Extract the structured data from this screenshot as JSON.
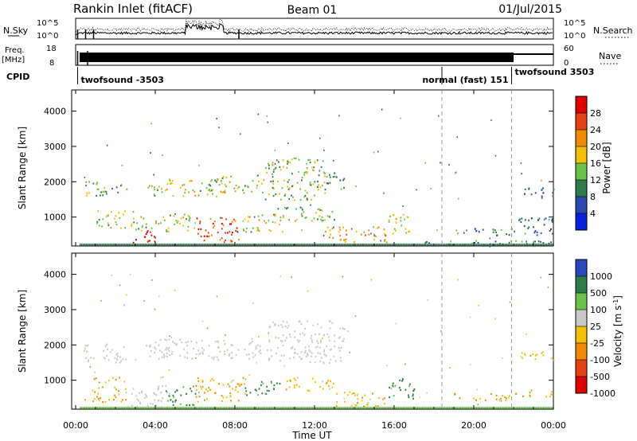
{
  "header": {
    "station": "Rankin Inlet (fitACF)",
    "beam": "Beam 01",
    "date": "01/Jul/2015"
  },
  "top_panels": {
    "nsky_label": "N.Sky",
    "nsearch_label": "N.Search",
    "freq_label_1": "Freq.",
    "freq_label_2": "[MHz]",
    "nave_label": "Nave",
    "cpid_label": "CPID",
    "left_ticks_counts": [
      "10^5",
      "10^0"
    ],
    "right_ticks_counts": [
      "10^5",
      "10^0"
    ],
    "left_ticks_freq": [
      "18",
      "8"
    ],
    "right_ticks_nave": [
      "60",
      "0"
    ]
  },
  "cpid_segments": [
    {
      "label": "twofsound -3503",
      "start_hour": 0.1
    },
    {
      "label": "normal (fast) 151",
      "start_hour": 18.4
    },
    {
      "label": "twofsound 3503",
      "start_hour": 21.9
    }
  ],
  "x_axis": {
    "label": "Time UT",
    "ticks": [
      "00:00",
      "04:00",
      "08:00",
      "12:00",
      "16:00",
      "20:00",
      "00:00"
    ],
    "range_hours": [
      0,
      24
    ]
  },
  "chart_data": [
    {
      "type": "heatmap",
      "ylabel": "Slant Range [km]",
      "yticks": [
        "1000",
        "2000",
        "3000",
        "4000"
      ],
      "ylim": [
        180,
        4600
      ],
      "colorbar_label": "Power [dB]",
      "colorbar_ticks": [
        "4",
        "8",
        "12",
        "16",
        "20",
        "24",
        "28"
      ],
      "colors": [
        "#0a1ee0",
        "#2a48b0",
        "#2f7a4a",
        "#6cc248",
        "#f2c000",
        "#f28a00",
        "#e84010",
        "#e00000"
      ],
      "regions": [
        {
          "t0": 0.4,
          "t1": 1.6,
          "r0": 1500,
          "r1": 2050,
          "value": 14
        },
        {
          "t0": 1.8,
          "t1": 2.6,
          "r0": 1700,
          "r1": 1950,
          "value": 14
        },
        {
          "t0": 3.6,
          "t1": 7.5,
          "r0": 1600,
          "r1": 2100,
          "value": 16
        },
        {
          "t0": 7.0,
          "t1": 9.5,
          "r0": 1700,
          "r1": 2200,
          "value": 16
        },
        {
          "t0": 9.5,
          "t1": 12.5,
          "r0": 1500,
          "r1": 2700,
          "value": 14
        },
        {
          "t0": 12.0,
          "t1": 13.5,
          "r0": 1800,
          "r1": 2300,
          "value": 12
        },
        {
          "t0": 1.0,
          "t1": 3.0,
          "r0": 700,
          "r1": 1200,
          "value": 16
        },
        {
          "t0": 2.8,
          "t1": 4.2,
          "r0": 250,
          "r1": 650,
          "value": 28
        },
        {
          "t0": 3.0,
          "t1": 6.0,
          "r0": 600,
          "r1": 1100,
          "value": 16
        },
        {
          "t0": 6.0,
          "t1": 8.4,
          "r0": 300,
          "r1": 1000,
          "value": 26
        },
        {
          "t0": 8.4,
          "t1": 10.5,
          "r0": 600,
          "r1": 1100,
          "value": 16
        },
        {
          "t0": 10.0,
          "t1": 13.0,
          "r0": 900,
          "r1": 1300,
          "value": 14
        },
        {
          "t0": 12.5,
          "t1": 15.6,
          "r0": 250,
          "r1": 750,
          "value": 20
        },
        {
          "t0": 15.6,
          "t1": 16.8,
          "r0": 500,
          "r1": 1100,
          "value": 18
        },
        {
          "t0": 16.8,
          "t1": 24.0,
          "r0": 180,
          "r1": 350,
          "value": 10
        },
        {
          "t0": 19.0,
          "t1": 22.0,
          "r0": 500,
          "r1": 700,
          "value": 8
        },
        {
          "t0": 22.0,
          "t1": 24.0,
          "r0": 500,
          "r1": 1000,
          "value": 8
        },
        {
          "t0": 22.3,
          "t1": 24.0,
          "r0": 1550,
          "r1": 1850,
          "value": 6
        }
      ]
    },
    {
      "type": "heatmap",
      "ylabel": "Slant Range [km]",
      "yticks": [
        "1000",
        "2000",
        "3000",
        "4000"
      ],
      "ylim": [
        180,
        4600
      ],
      "colorbar_label": "Velocity [m s^-1]",
      "colorbar_ticks": [
        "1000",
        "500",
        "100",
        "25",
        "-25",
        "-100",
        "-500",
        "-1000"
      ],
      "colors": [
        "#2a48c0",
        "#2f7a4a",
        "#6cc248",
        "#c8c8c8",
        "#f2c000",
        "#f28a00",
        "#e84010",
        "#e00000"
      ],
      "regions": [
        {
          "t0": 0.4,
          "t1": 2.5,
          "r0": 1500,
          "r1": 2050,
          "value": 0
        },
        {
          "t0": 3.5,
          "t1": 9.5,
          "r0": 1600,
          "r1": 2200,
          "value": 0
        },
        {
          "t0": 9.5,
          "t1": 13.5,
          "r0": 1500,
          "r1": 2700,
          "value": 0
        },
        {
          "t0": 0.8,
          "t1": 2.5,
          "r0": 400,
          "r1": 1100,
          "value": -100
        },
        {
          "t0": 2.5,
          "t1": 4.8,
          "r0": 250,
          "r1": 900,
          "value": 0
        },
        {
          "t0": 4.5,
          "t1": 6.0,
          "r0": 300,
          "r1": 900,
          "value": 200
        },
        {
          "t0": 6.0,
          "t1": 8.5,
          "r0": 400,
          "r1": 1100,
          "value": -100
        },
        {
          "t0": 8.5,
          "t1": 10.5,
          "r0": 600,
          "r1": 1000,
          "value": 200
        },
        {
          "t0": 10.5,
          "t1": 13.0,
          "r0": 700,
          "r1": 1100,
          "value": -60
        },
        {
          "t0": 13.0,
          "t1": 15.6,
          "r0": 250,
          "r1": 700,
          "value": -80
        },
        {
          "t0": 15.6,
          "t1": 17.0,
          "r0": 500,
          "r1": 1100,
          "value": 200
        },
        {
          "t0": 19.0,
          "t1": 22.0,
          "r0": 450,
          "r1": 650,
          "value": -150
        },
        {
          "t0": 22.0,
          "t1": 24.0,
          "r0": 550,
          "r1": 750,
          "value": -150
        },
        {
          "t0": 22.3,
          "t1": 24.0,
          "r0": 1550,
          "r1": 1850,
          "value": -60
        }
      ]
    }
  ]
}
